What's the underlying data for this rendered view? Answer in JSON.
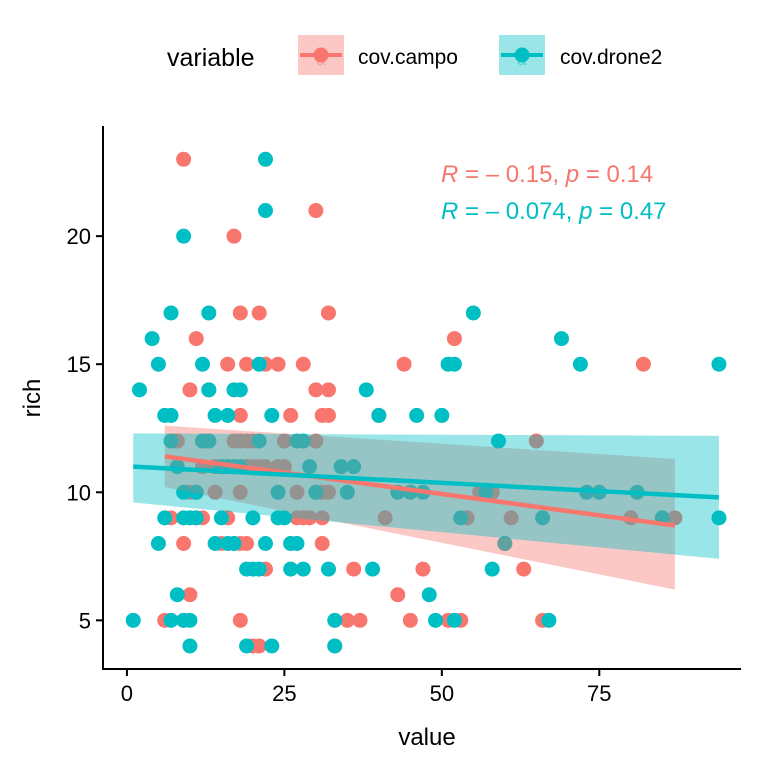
{
  "chart_data": {
    "type": "scatter",
    "xlabel": "value",
    "ylabel": "rich",
    "xlim": [
      -3.8,
      97.5
    ],
    "ylim": [
      3.1,
      24.3
    ],
    "x_ticks": [
      0,
      25,
      50,
      75
    ],
    "y_ticks": [
      5,
      10,
      15,
      20
    ],
    "x_tick_labels": [
      "0",
      "25",
      "50",
      "75"
    ],
    "y_tick_labels": [
      "5",
      "10",
      "15",
      "20"
    ],
    "grid": false,
    "legend": {
      "title": "variable",
      "placement": "top",
      "key_glyph": "a"
    },
    "series": [
      {
        "name": "cov.campo",
        "color": "#F8766D",
        "fill_color": "#F8766D",
        "annotation": {
          "r_label": "R",
          "r_value": " = – 0.15, ",
          "p_label": "p",
          "p_value": " = 0.14"
        },
        "regression": {
          "x_start": 6,
          "x_end": 87,
          "y_start": 11.4,
          "y_end": 8.7,
          "band_start": [
            10.2,
            12.6
          ],
          "band_end": [
            6.2,
            11.3
          ]
        },
        "points": [
          [
            6,
            5
          ],
          [
            7,
            9
          ],
          [
            8,
            12
          ],
          [
            9,
            23
          ],
          [
            9,
            8
          ],
          [
            9,
            5
          ],
          [
            10,
            10
          ],
          [
            10,
            6
          ],
          [
            10,
            14
          ],
          [
            11,
            16
          ],
          [
            11,
            10
          ],
          [
            11,
            9
          ],
          [
            12,
            12
          ],
          [
            12,
            11
          ],
          [
            12,
            9
          ],
          [
            13,
            14
          ],
          [
            13,
            12
          ],
          [
            14,
            11
          ],
          [
            14,
            10
          ],
          [
            15,
            11
          ],
          [
            15,
            8
          ],
          [
            16,
            15
          ],
          [
            16,
            11
          ],
          [
            16,
            9
          ],
          [
            17,
            20
          ],
          [
            17,
            12
          ],
          [
            17,
            8
          ],
          [
            18,
            17
          ],
          [
            18,
            13
          ],
          [
            18,
            12
          ],
          [
            18,
            10
          ],
          [
            18,
            8
          ],
          [
            18,
            5
          ],
          [
            19,
            15
          ],
          [
            19,
            12
          ],
          [
            19,
            11
          ],
          [
            19,
            8
          ],
          [
            20,
            12
          ],
          [
            20,
            11
          ],
          [
            20,
            4
          ],
          [
            21,
            17
          ],
          [
            21,
            11
          ],
          [
            21,
            4
          ],
          [
            22,
            15
          ],
          [
            22,
            11
          ],
          [
            22,
            7
          ],
          [
            24,
            15
          ],
          [
            24,
            11
          ],
          [
            25,
            12
          ],
          [
            25,
            11
          ],
          [
            26,
            13
          ],
          [
            26,
            8
          ],
          [
            27,
            10
          ],
          [
            27,
            9
          ],
          [
            28,
            15
          ],
          [
            28,
            9
          ],
          [
            29,
            9
          ],
          [
            30,
            21
          ],
          [
            30,
            14
          ],
          [
            30,
            12
          ],
          [
            30,
            10
          ],
          [
            31,
            13
          ],
          [
            31,
            10
          ],
          [
            31,
            9
          ],
          [
            31,
            8
          ],
          [
            32,
            17
          ],
          [
            32,
            14
          ],
          [
            32,
            13
          ],
          [
            32,
            10
          ],
          [
            33,
            4
          ],
          [
            35,
            5
          ],
          [
            36,
            7
          ],
          [
            37,
            5
          ],
          [
            40,
            13
          ],
          [
            41,
            9
          ],
          [
            43,
            6
          ],
          [
            44,
            15
          ],
          [
            45,
            5
          ],
          [
            47,
            7
          ],
          [
            51,
            5
          ],
          [
            52,
            16
          ],
          [
            53,
            5
          ],
          [
            54,
            9
          ],
          [
            56,
            10
          ],
          [
            58,
            10
          ],
          [
            60,
            8
          ],
          [
            61,
            9
          ],
          [
            63,
            7
          ],
          [
            65,
            12
          ],
          [
            66,
            5
          ],
          [
            80,
            9
          ],
          [
            82,
            15
          ],
          [
            87,
            9
          ]
        ]
      },
      {
        "name": "cov.drone2",
        "color": "#00BFC4",
        "fill_color": "#00BFC4",
        "annotation": {
          "r_label": "R",
          "r_value": " = – 0.074, ",
          "p_label": "p",
          "p_value": " = 0.47"
        },
        "regression": {
          "x_start": 1,
          "x_end": 94,
          "y_start": 11.0,
          "y_end": 9.8,
          "band_start": [
            9.6,
            12.3
          ],
          "band_end": [
            7.4,
            12.2
          ]
        },
        "points": [
          [
            1,
            5
          ],
          [
            2,
            14
          ],
          [
            4,
            16
          ],
          [
            5,
            15
          ],
          [
            5,
            8
          ],
          [
            6,
            13
          ],
          [
            6,
            9
          ],
          [
            7,
            17
          ],
          [
            7,
            13
          ],
          [
            7,
            12
          ],
          [
            7,
            5
          ],
          [
            8,
            11
          ],
          [
            8,
            6
          ],
          [
            9,
            20
          ],
          [
            9,
            10
          ],
          [
            9,
            9
          ],
          [
            9,
            5
          ],
          [
            10,
            9
          ],
          [
            10,
            5
          ],
          [
            10,
            4
          ],
          [
            11,
            10
          ],
          [
            11,
            9
          ],
          [
            12,
            15
          ],
          [
            12,
            12
          ],
          [
            13,
            17
          ],
          [
            13,
            14
          ],
          [
            13,
            12
          ],
          [
            14,
            13
          ],
          [
            14,
            8
          ],
          [
            15,
            11
          ],
          [
            15,
            9
          ],
          [
            16,
            13
          ],
          [
            16,
            11
          ],
          [
            16,
            8
          ],
          [
            17,
            14
          ],
          [
            17,
            11
          ],
          [
            17,
            8
          ],
          [
            18,
            14
          ],
          [
            18,
            11
          ],
          [
            19,
            7
          ],
          [
            19,
            4
          ],
          [
            20,
            9
          ],
          [
            20,
            7
          ],
          [
            21,
            15
          ],
          [
            21,
            12
          ],
          [
            21,
            7
          ],
          [
            22,
            23
          ],
          [
            22,
            21
          ],
          [
            22,
            8
          ],
          [
            23,
            13
          ],
          [
            23,
            4
          ],
          [
            24,
            10
          ],
          [
            24,
            9
          ],
          [
            25,
            9
          ],
          [
            26,
            7
          ],
          [
            26,
            8
          ],
          [
            27,
            8
          ],
          [
            27,
            12
          ],
          [
            28,
            12
          ],
          [
            28,
            7
          ],
          [
            29,
            11
          ],
          [
            30,
            10
          ],
          [
            32,
            7
          ],
          [
            33,
            5
          ],
          [
            33,
            4
          ],
          [
            34,
            11
          ],
          [
            35,
            10
          ],
          [
            36,
            11
          ],
          [
            38,
            14
          ],
          [
            39,
            7
          ],
          [
            40,
            13
          ],
          [
            43,
            10
          ],
          [
            45,
            10
          ],
          [
            46,
            13
          ],
          [
            47,
            10
          ],
          [
            48,
            6
          ],
          [
            49,
            5
          ],
          [
            50,
            13
          ],
          [
            51,
            15
          ],
          [
            52,
            15
          ],
          [
            52,
            5
          ],
          [
            53,
            9
          ],
          [
            55,
            17
          ],
          [
            57,
            10
          ],
          [
            58,
            7
          ],
          [
            59,
            12
          ],
          [
            60,
            8
          ],
          [
            66,
            9
          ],
          [
            67,
            5
          ],
          [
            69,
            16
          ],
          [
            72,
            15
          ],
          [
            73,
            10
          ],
          [
            75,
            10
          ],
          [
            81,
            10
          ],
          [
            85,
            9
          ],
          [
            94,
            15
          ],
          [
            94,
            9
          ]
        ]
      }
    ]
  }
}
